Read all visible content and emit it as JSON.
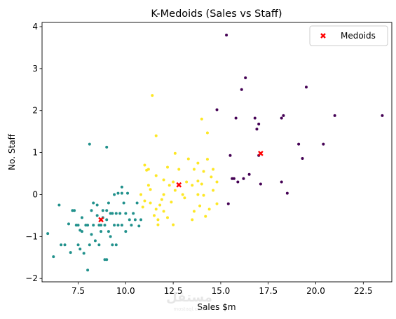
{
  "chart_data": {
    "type": "scatter",
    "title": "K-Medoids (Sales vs Staff)",
    "xlabel": "Sales $m",
    "ylabel": "No. Staff",
    "xlim": [
      5.6,
      24.0
    ],
    "ylim": [
      -2.08,
      4.1
    ],
    "xticks": [
      7.5,
      10.0,
      12.5,
      15.0,
      17.5,
      20.0,
      22.5
    ],
    "xtick_labels": [
      "7.5",
      "10.0",
      "12.5",
      "15.0",
      "17.5",
      "20.0",
      "22.5"
    ],
    "yticks": [
      -2,
      -1,
      0,
      1,
      2,
      3,
      4
    ],
    "ytick_labels": [
      "−2",
      "−1",
      "0",
      "1",
      "2",
      "3",
      "4"
    ],
    "grid": false,
    "legend": {
      "position": "upper right",
      "entries": [
        "Medoids"
      ]
    },
    "colors": {
      "cluster_0": "#440154",
      "cluster_1": "#21918c",
      "cluster_2": "#fde725",
      "medoid": "#ff0000"
    },
    "series": [
      {
        "cluster": 0,
        "color": "#440154",
        "points": [
          [
            15.3,
            3.8
          ],
          [
            16.3,
            2.78
          ],
          [
            16.1,
            2.5
          ],
          [
            19.5,
            2.56
          ],
          [
            14.8,
            2.02
          ],
          [
            18.3,
            1.88
          ],
          [
            21.0,
            1.88
          ],
          [
            23.5,
            1.88
          ],
          [
            15.8,
            1.82
          ],
          [
            16.8,
            1.82
          ],
          [
            18.2,
            1.82
          ],
          [
            17.0,
            1.68
          ],
          [
            16.9,
            1.56
          ],
          [
            19.1,
            1.2
          ],
          [
            20.4,
            1.2
          ],
          [
            15.5,
            0.93
          ],
          [
            17.0,
            0.93
          ],
          [
            19.3,
            0.86
          ],
          [
            15.6,
            0.38
          ],
          [
            15.7,
            0.38
          ],
          [
            16.2,
            0.38
          ],
          [
            15.9,
            0.3
          ],
          [
            16.5,
            0.48
          ],
          [
            17.1,
            0.25
          ],
          [
            18.2,
            0.3
          ],
          [
            18.5,
            0.03
          ],
          [
            15.4,
            -0.22
          ]
        ]
      },
      {
        "cluster": 1,
        "color": "#21918c",
        "points": [
          [
            5.9,
            -0.93
          ],
          [
            6.2,
            -1.48
          ],
          [
            6.5,
            -0.25
          ],
          [
            6.6,
            -1.2
          ],
          [
            6.8,
            -1.2
          ],
          [
            7.0,
            -0.7
          ],
          [
            7.1,
            -1.38
          ],
          [
            7.2,
            -0.38
          ],
          [
            7.3,
            -0.38
          ],
          [
            7.4,
            -0.73
          ],
          [
            7.5,
            -0.73
          ],
          [
            7.5,
            -1.2
          ],
          [
            7.6,
            -1.3
          ],
          [
            7.7,
            -0.55
          ],
          [
            7.7,
            -0.88
          ],
          [
            7.8,
            -1.4
          ],
          [
            7.9,
            -0.73
          ],
          [
            8.0,
            -1.8
          ],
          [
            8.0,
            -0.73
          ],
          [
            8.1,
            -1.2
          ],
          [
            8.1,
            1.2
          ],
          [
            8.2,
            -0.38
          ],
          [
            8.2,
            -0.95
          ],
          [
            8.3,
            -0.73
          ],
          [
            8.4,
            -1.1
          ],
          [
            8.5,
            -0.25
          ],
          [
            8.5,
            -0.5
          ],
          [
            8.6,
            -0.73
          ],
          [
            8.6,
            -1.2
          ],
          [
            8.7,
            -0.73
          ],
          [
            8.7,
            -0.88
          ],
          [
            8.8,
            -0.38
          ],
          [
            8.8,
            -0.55
          ],
          [
            8.9,
            -0.73
          ],
          [
            8.9,
            -1.55
          ],
          [
            9.0,
            -1.55
          ],
          [
            9.0,
            1.13
          ],
          [
            9.0,
            -0.38
          ],
          [
            9.1,
            -0.2
          ],
          [
            9.1,
            -0.88
          ],
          [
            9.2,
            -0.45
          ],
          [
            9.2,
            -1.0
          ],
          [
            9.3,
            -0.45
          ],
          [
            9.3,
            -1.2
          ],
          [
            9.4,
            -0.73
          ],
          [
            9.4,
            0.0
          ],
          [
            9.5,
            -0.45
          ],
          [
            9.5,
            -1.2
          ],
          [
            9.6,
            0.03
          ],
          [
            9.6,
            -0.73
          ],
          [
            9.7,
            -0.45
          ],
          [
            9.8,
            0.03
          ],
          [
            9.8,
            0.18
          ],
          [
            9.8,
            -0.73
          ],
          [
            9.9,
            -0.2
          ],
          [
            10.0,
            -0.45
          ],
          [
            10.0,
            -0.88
          ],
          [
            10.1,
            0.03
          ],
          [
            10.2,
            -0.6
          ],
          [
            10.3,
            -0.73
          ],
          [
            10.4,
            -0.45
          ],
          [
            10.5,
            -0.6
          ],
          [
            10.6,
            -0.2
          ],
          [
            10.7,
            -0.75
          ],
          [
            10.8,
            -0.6
          ],
          [
            9.0,
            -0.6
          ],
          [
            8.3,
            -0.2
          ],
          [
            7.6,
            -0.85
          ]
        ]
      },
      {
        "cluster": 2,
        "color": "#fde725",
        "points": [
          [
            11.4,
            2.36
          ],
          [
            11.6,
            1.4
          ],
          [
            14.3,
            1.47
          ],
          [
            14.0,
            1.8
          ],
          [
            12.6,
            0.98
          ],
          [
            13.3,
            0.85
          ],
          [
            14.3,
            0.84
          ],
          [
            13.8,
            0.75
          ],
          [
            11.0,
            0.7
          ],
          [
            12.2,
            0.65
          ],
          [
            11.2,
            0.6
          ],
          [
            11.1,
            0.58
          ],
          [
            12.8,
            0.6
          ],
          [
            13.6,
            0.6
          ],
          [
            14.1,
            0.55
          ],
          [
            14.6,
            0.6
          ],
          [
            11.6,
            0.45
          ],
          [
            12.0,
            0.35
          ],
          [
            12.5,
            0.3
          ],
          [
            13.2,
            0.3
          ],
          [
            13.5,
            0.22
          ],
          [
            11.2,
            0.22
          ],
          [
            11.3,
            0.12
          ],
          [
            12.3,
            0.22
          ],
          [
            13.8,
            0.32
          ],
          [
            14.0,
            0.25
          ],
          [
            14.5,
            0.42
          ],
          [
            14.8,
            0.3
          ],
          [
            10.8,
            0.0
          ],
          [
            12.0,
            0.0
          ],
          [
            12.6,
            0.1
          ],
          [
            13.0,
            0.0
          ],
          [
            13.8,
            0.0
          ],
          [
            14.6,
            0.1
          ],
          [
            11.0,
            -0.15
          ],
          [
            11.3,
            -0.2
          ],
          [
            11.9,
            -0.12
          ],
          [
            12.4,
            -0.18
          ],
          [
            13.1,
            -0.08
          ],
          [
            14.1,
            -0.02
          ],
          [
            13.9,
            -0.27
          ],
          [
            14.8,
            -0.22
          ],
          [
            11.8,
            -0.25
          ],
          [
            11.6,
            -0.35
          ],
          [
            12.0,
            -0.4
          ],
          [
            13.6,
            -0.4
          ],
          [
            14.2,
            -0.52
          ],
          [
            14.4,
            -0.35
          ],
          [
            11.5,
            -0.5
          ],
          [
            12.2,
            -0.55
          ],
          [
            11.7,
            -0.6
          ],
          [
            12.5,
            -0.72
          ],
          [
            11.7,
            -0.72
          ],
          [
            10.9,
            -0.3
          ],
          [
            13.5,
            -0.6
          ]
        ]
      }
    ],
    "medoids": [
      {
        "cluster": 0,
        "x": 17.1,
        "y": 0.98
      },
      {
        "cluster": 1,
        "x": 8.7,
        "y": -0.6
      },
      {
        "cluster": 2,
        "x": 12.8,
        "y": 0.23
      }
    ]
  },
  "watermark": {
    "main": "مستقل",
    "sub": "mostaql.com"
  }
}
